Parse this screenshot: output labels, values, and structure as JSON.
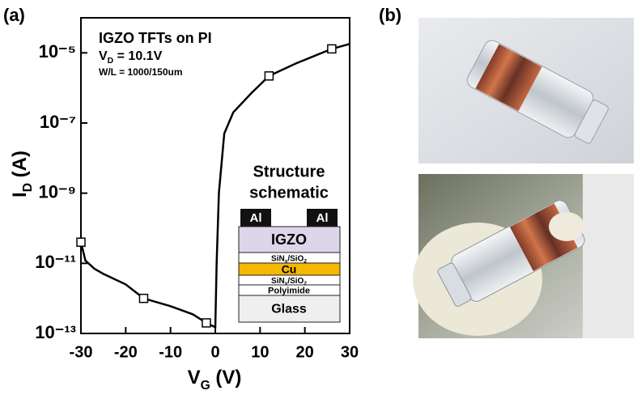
{
  "chart_data": {
    "type": "line",
    "panel_label": "(a)",
    "x_label": [
      "V",
      "G",
      " (V)"
    ],
    "y_label": [
      "I",
      "D",
      " (A)"
    ],
    "annotations": [
      [
        "IGZO  TFTs on PI"
      ],
      [
        "V",
        "D",
        " = 10.1V"
      ],
      [
        "W/L = 1000/150um"
      ]
    ],
    "series": [
      {
        "color": "#000000",
        "x": [
          -30,
          -29,
          -27,
          -25,
          -20,
          -16,
          -10,
          -5,
          -2,
          0,
          0.3,
          0.8,
          2,
          4,
          8,
          12,
          18,
          26,
          30
        ],
        "values": [
          4e-11,
          1.2e-11,
          7e-12,
          5e-12,
          2.5e-12,
          1e-12,
          6e-13,
          3.5e-13,
          2e-13,
          1.5e-13,
          1e-11,
          1e-09,
          5e-08,
          2e-07,
          7e-07,
          2.2e-06,
          5e-06,
          1.3e-05,
          1.8e-05
        ]
      }
    ],
    "markers": {
      "x": [
        -30,
        -16,
        -2,
        12,
        26
      ],
      "values": [
        4e-11,
        1e-12,
        2e-13,
        2.2e-06,
        1.3e-05
      ]
    },
    "xlim": [
      -30,
      30
    ],
    "xticks": [
      -30,
      -20,
      -10,
      0,
      10,
      20,
      30
    ],
    "ylim": [
      1e-13,
      0.0001
    ],
    "ylog": true,
    "yticks": [
      {
        "value": 1e-13,
        "label": "10⁻¹³"
      },
      {
        "value": 1e-11,
        "label": "10⁻¹¹"
      },
      {
        "value": 1e-09,
        "label": "10⁻⁹"
      },
      {
        "value": 1e-07,
        "label": "10⁻⁷"
      },
      {
        "value": 1e-05,
        "label": "10⁻⁵"
      }
    ],
    "schematic": {
      "title": [
        "Structure",
        "schematic"
      ],
      "contacts": [
        "Al",
        "Al"
      ],
      "layers": [
        [
          "IGZO"
        ],
        [
          "SiN",
          "x",
          "/SiO",
          "2"
        ],
        [
          "Cu"
        ],
        [
          "SiN",
          "x",
          "/SiO",
          "2"
        ],
        [
          "Polyimide"
        ],
        [
          "Glass"
        ]
      ]
    }
  },
  "photos": {
    "panel_label": "(b)"
  }
}
